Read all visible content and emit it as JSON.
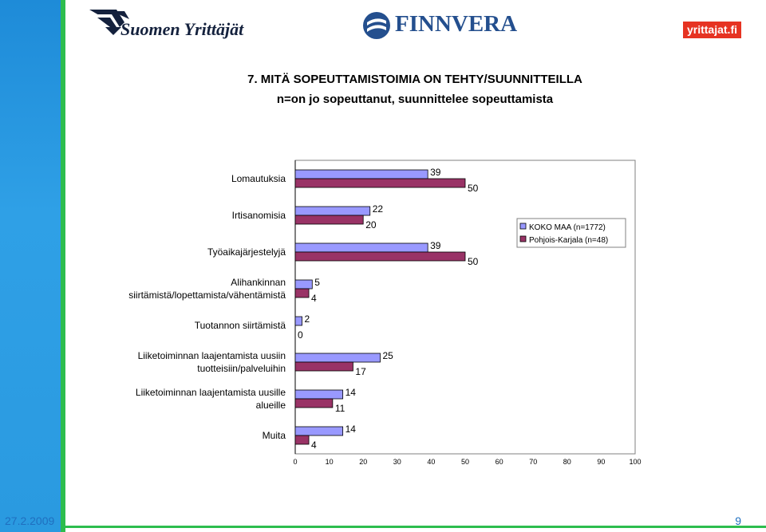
{
  "header": {
    "logo_left": "Suomen Yrittäjät",
    "logo_center": "FINNVERA",
    "logo_right": "yrittajat.fi"
  },
  "title_line1": "7. MITÄ SOPEUTTAMISTOIMIA ON TEHTY/SUUNNITTEILLA",
  "title_line2": "n=on jo sopeuttanut, suunnittelee sopeuttamista",
  "footer": {
    "date": "27.2.2009",
    "page": "9"
  },
  "colors": {
    "series1": "#9999ff",
    "series2": "#993366",
    "sidebar": "#2fa0e6",
    "accent_green": "#2dbd4e",
    "brand_red": "#e63322"
  },
  "chart_data": {
    "type": "bar",
    "orientation": "horizontal",
    "categories": [
      [
        "Lomautuksia"
      ],
      [
        "Irtisanomisia"
      ],
      [
        "Työaikajärjestelyjä"
      ],
      [
        "Alihankinnan",
        "siirtämistä/lopettamista/vähentämistä"
      ],
      [
        "Tuotannon siirtämistä"
      ],
      [
        "Liiketoiminnan laajentamista uusiin",
        "tuotteisiin/palveluihin"
      ],
      [
        "Liiketoiminnan laajentamista uusille",
        "alueille"
      ],
      [
        "Muita"
      ]
    ],
    "series": [
      {
        "name": "KOKO MAA (n=1772)",
        "color": "#9999ff",
        "values": [
          39,
          22,
          39,
          5,
          2,
          25,
          14,
          14
        ]
      },
      {
        "name": "Pohjois-Karjala (n=48)",
        "color": "#993366",
        "values": [
          50,
          20,
          50,
          4,
          0,
          17,
          11,
          4
        ]
      }
    ],
    "xlim": [
      0,
      100
    ],
    "xticks": [
      0,
      10,
      20,
      30,
      40,
      50,
      60,
      70,
      80,
      90,
      100
    ],
    "legend_position": "right",
    "grid": false
  }
}
